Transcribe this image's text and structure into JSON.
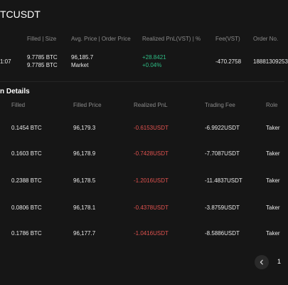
{
  "page": {
    "title": "TCUSDT"
  },
  "orders": {
    "headers": {
      "filled_size": "Filled | Size",
      "avg_order_price": "Avg. Price | Order Price",
      "realized_pnl": "Realized PnL(VST)  |  %",
      "fee": "Fee(VST)",
      "order_no": "Order No."
    },
    "row": {
      "time": "1:07",
      "filled": "9.7785  BTC",
      "size": "9.7785  BTC",
      "avg_price": "96,185.7",
      "order_price": "Market",
      "pnl": "+28.8421",
      "pnl_pct": "+0.04%",
      "fee": "-470.2758",
      "order_no": "18881309253"
    }
  },
  "details": {
    "section_title": "n Details",
    "headers": {
      "filled": "Filled",
      "filled_price": "Filled Price",
      "realized_pnl": "Realized PnL",
      "trading_fee": "Trading Fee",
      "role": "Role"
    },
    "rows": [
      {
        "filled": "0.1454 BTC",
        "price": "96,179.3",
        "pnl": "-0.6153USDT",
        "fee": "-6.9922USDT",
        "role": "Taker"
      },
      {
        "filled": "0.1603 BTC",
        "price": "96,178.9",
        "pnl": "-0.7428USDT",
        "fee": "-7.7087USDT",
        "role": "Taker"
      },
      {
        "filled": "0.2388 BTC",
        "price": "96,178.5",
        "pnl": "-1.2016USDT",
        "fee": "-11.4837USDT",
        "role": "Taker"
      },
      {
        "filled": "0.0806 BTC",
        "price": "96,178.1",
        "pnl": "-0.4378USDT",
        "fee": "-3.8759USDT",
        "role": "Taker"
      },
      {
        "filled": "0.1786 BTC",
        "price": "96,177.7",
        "pnl": "-1.0416USDT",
        "fee": "-8.5886USDT",
        "role": "Taker"
      }
    ]
  },
  "pagination": {
    "prev_icon": "chevron-left-icon",
    "current_page": "1"
  },
  "colors": {
    "positive": "#2ebd85",
    "negative": "#e0524f",
    "background": "#161616"
  }
}
